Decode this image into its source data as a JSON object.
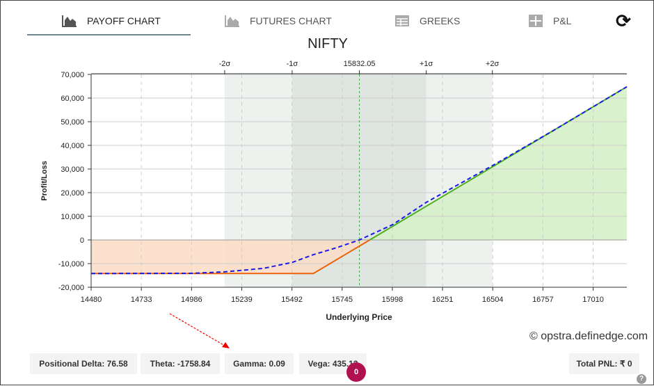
{
  "tabs": [
    {
      "label": "PAYOFF CHART",
      "icon": "area-chart-icon",
      "active": true
    },
    {
      "label": "FUTURES CHART",
      "icon": "area-chart-icon",
      "active": false
    },
    {
      "label": "GREEKS",
      "icon": "table-icon",
      "active": false
    },
    {
      "label": "P&L",
      "icon": "grid-icon",
      "active": false
    }
  ],
  "refresh_icon": "refresh-icon",
  "watermark": "© opstra.definedge.com",
  "stats": {
    "delta": "Positional Delta: 76.58",
    "theta": "Theta: -1758.84",
    "gamma": "Gamma: 0.09",
    "vega": "Vega: 435.13",
    "pnl": "Total PNL: ₹ 0"
  },
  "badge": "0",
  "help": "?",
  "chart_data": {
    "type": "line",
    "title": "NIFTY",
    "xlabel": "Underlying Price",
    "ylabel": "Profit/Loss",
    "xlim": [
      14480,
      17180
    ],
    "ylim": [
      -20000,
      70000
    ],
    "x_ticks": [
      14480,
      14733,
      14986,
      15239,
      15492,
      15745,
      15998,
      16251,
      16504,
      16757,
      17010
    ],
    "y_ticks": [
      -20000,
      -10000,
      0,
      10000,
      20000,
      30000,
      40000,
      50000,
      60000,
      70000
    ],
    "y_tick_labels": [
      "-20,000",
      "-10,000",
      "0",
      "10,000",
      "20,000",
      "30,000",
      "40,000",
      "50,000",
      "60,000",
      "70,000"
    ],
    "spot": {
      "label": "15832.05",
      "value": 15832.05
    },
    "sigma_levels": [
      {
        "label": "-2σ",
        "value": 15153
      },
      {
        "label": "-1σ",
        "value": 15493
      },
      {
        "label": "+1σ",
        "value": 16169
      },
      {
        "label": "+2σ",
        "value": 16502
      }
    ],
    "series": [
      {
        "style": "expiry",
        "color_loss": "#e8630a",
        "color_profit": "#4caf1f",
        "points": [
          [
            14480,
            -14200
          ],
          [
            15600,
            -14200
          ],
          [
            15884,
            0
          ],
          [
            17180,
            64800
          ]
        ]
      },
      {
        "style": "dashed",
        "color": "#1a1ae6",
        "points": [
          [
            14480,
            -14200
          ],
          [
            14986,
            -14100
          ],
          [
            15153,
            -13500
          ],
          [
            15350,
            -12000
          ],
          [
            15493,
            -9500
          ],
          [
            15601,
            -6200
          ],
          [
            15720,
            -3200
          ],
          [
            15832,
            0
          ],
          [
            16000,
            6500
          ],
          [
            16169,
            15900
          ],
          [
            16504,
            31500
          ],
          [
            16800,
            45800
          ],
          [
            17180,
            64800
          ]
        ]
      }
    ],
    "colors": {
      "loss_fill": "#fbdcc6",
      "profit_fill": "#d6efc8",
      "band1": "#dfe6e1",
      "band2": "#eef2ef",
      "spot_line": "#3aa83a"
    },
    "grid": true
  }
}
